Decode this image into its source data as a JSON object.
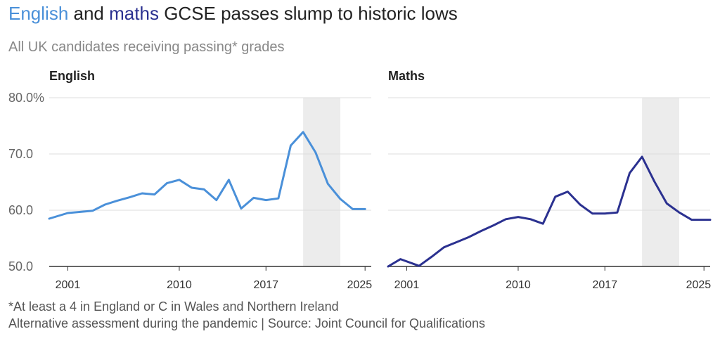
{
  "title": {
    "word_english": "English",
    "word_and": "and",
    "word_maths": "maths",
    "rest": "GCSE passes slump to historic lows"
  },
  "subtitle": "All UK candidates receiving passing* grades",
  "footnotes": {
    "note": "*At least a 4 in England or C in Wales and Northern Ireland",
    "source": "Alternative assessment during the pandemic | Source: Joint Council for Qualifications"
  },
  "colors": {
    "english": "#4a90d9",
    "maths": "#2b3190",
    "shade": "#ececec",
    "grid": "#dddddd"
  },
  "chart_data": [
    {
      "type": "line",
      "title": "English",
      "ylim": [
        50,
        80
      ],
      "xlim": [
        1999.5,
        2025.5
      ],
      "yticks": [
        50,
        60,
        70,
        80
      ],
      "ytick_labels": [
        "50.0",
        "60.0",
        "70.0",
        "80.0%"
      ],
      "xticks": [
        2001,
        2010,
        2017,
        2025
      ],
      "shaded_region": [
        2020,
        2023
      ],
      "series": [
        {
          "x": [
            1999.5,
            2001,
            2003,
            2004,
            2005,
            2006,
            2007,
            2008,
            2009,
            2010,
            2011,
            2012,
            2013,
            2014,
            2015,
            2016,
            2017,
            2018,
            2019,
            2020,
            2021,
            2022,
            2023,
            2024,
            2025
          ],
          "values": [
            58.5,
            59.5,
            59.9,
            61.0,
            61.7,
            62.3,
            63.0,
            62.8,
            64.8,
            65.4,
            64.0,
            63.7,
            61.8,
            65.4,
            60.3,
            62.2,
            61.8,
            62.1,
            71.5,
            73.9,
            70.3,
            64.7,
            62.0,
            60.2,
            60.2
          ]
        }
      ]
    },
    {
      "type": "line",
      "title": "Maths",
      "ylim": [
        50,
        80
      ],
      "xlim": [
        1999.5,
        2025.5
      ],
      "yticks": [
        50,
        60,
        70,
        80
      ],
      "xticks": [
        2001,
        2010,
        2017,
        2025
      ],
      "shaded_region": [
        2020,
        2023
      ],
      "series": [
        {
          "x": [
            1999.5,
            2000.5,
            2002,
            2003,
            2004,
            2005,
            2006,
            2007,
            2008,
            2009,
            2010,
            2011,
            2012,
            2013,
            2014,
            2015,
            2016,
            2017,
            2018,
            2019,
            2020,
            2021,
            2022,
            2023,
            2024,
            2025.5
          ],
          "values": [
            50.0,
            51.3,
            50.1,
            51.7,
            53.4,
            54.3,
            55.2,
            56.3,
            57.3,
            58.4,
            58.8,
            58.4,
            57.6,
            62.4,
            63.3,
            61.0,
            59.4,
            59.4,
            59.6,
            66.6,
            69.5,
            65.1,
            61.2,
            59.6,
            58.3,
            58.3
          ]
        }
      ]
    }
  ]
}
